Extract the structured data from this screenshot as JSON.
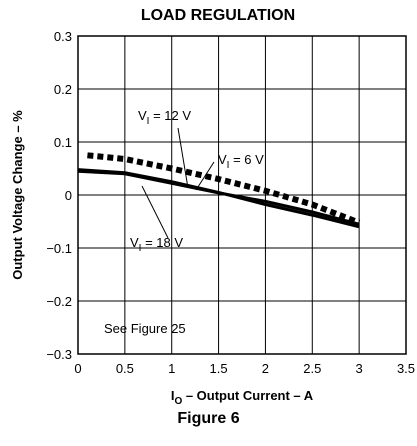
{
  "chart_data": {
    "type": "line",
    "title": "LOAD REGULATION",
    "xlabel": {
      "main": "I",
      "sub": "O",
      "rest": " – Output Current – A"
    },
    "ylabel": "Output Voltage Change – %",
    "xlim": [
      0,
      3.5
    ],
    "ylim": [
      -0.3,
      0.3
    ],
    "x_ticks": [
      "0",
      "0.5",
      "1",
      "1.5",
      "2",
      "2.5",
      "3",
      "3.5"
    ],
    "y_ticks": [
      "0.3",
      "0.2",
      "0.1",
      "0",
      "−0.1",
      "−0.2",
      "−0.3"
    ],
    "grid": true,
    "series": [
      {
        "name": "VI = 12 V",
        "style": "dotted",
        "color": "#000000",
        "x": [
          0.1,
          0.5,
          1.0,
          1.5,
          2.0,
          2.5,
          3.0
        ],
        "y": [
          0.075,
          0.068,
          0.05,
          0.03,
          0.008,
          -0.018,
          -0.052
        ]
      },
      {
        "name": "VI = 6 V",
        "style": "solid",
        "color": "#000000",
        "x": [
          0.0,
          0.5,
          1.0,
          1.5,
          2.0,
          2.5,
          3.0
        ],
        "y": [
          0.045,
          0.04,
          0.022,
          0.004,
          -0.012,
          -0.032,
          -0.055
        ]
      },
      {
        "name": "VI = 18 V",
        "style": "solid",
        "color": "#000000",
        "x": [
          0.0,
          0.5,
          1.0,
          1.5,
          2.0,
          2.5,
          3.0
        ],
        "y": [
          0.048,
          0.042,
          0.025,
          0.005,
          -0.018,
          -0.038,
          -0.06
        ]
      }
    ],
    "annotations": [
      {
        "id": "v12",
        "prefix": "V",
        "sub": "I",
        "suffix": " = 12 V"
      },
      {
        "id": "v6",
        "prefix": "V",
        "sub": "I",
        "suffix": " = 6 V"
      },
      {
        "id": "v18",
        "prefix": "V",
        "sub": "I",
        "suffix": " = 18 V"
      },
      {
        "id": "see",
        "text": "See Figure 25"
      }
    ]
  },
  "caption": "Figure 6"
}
